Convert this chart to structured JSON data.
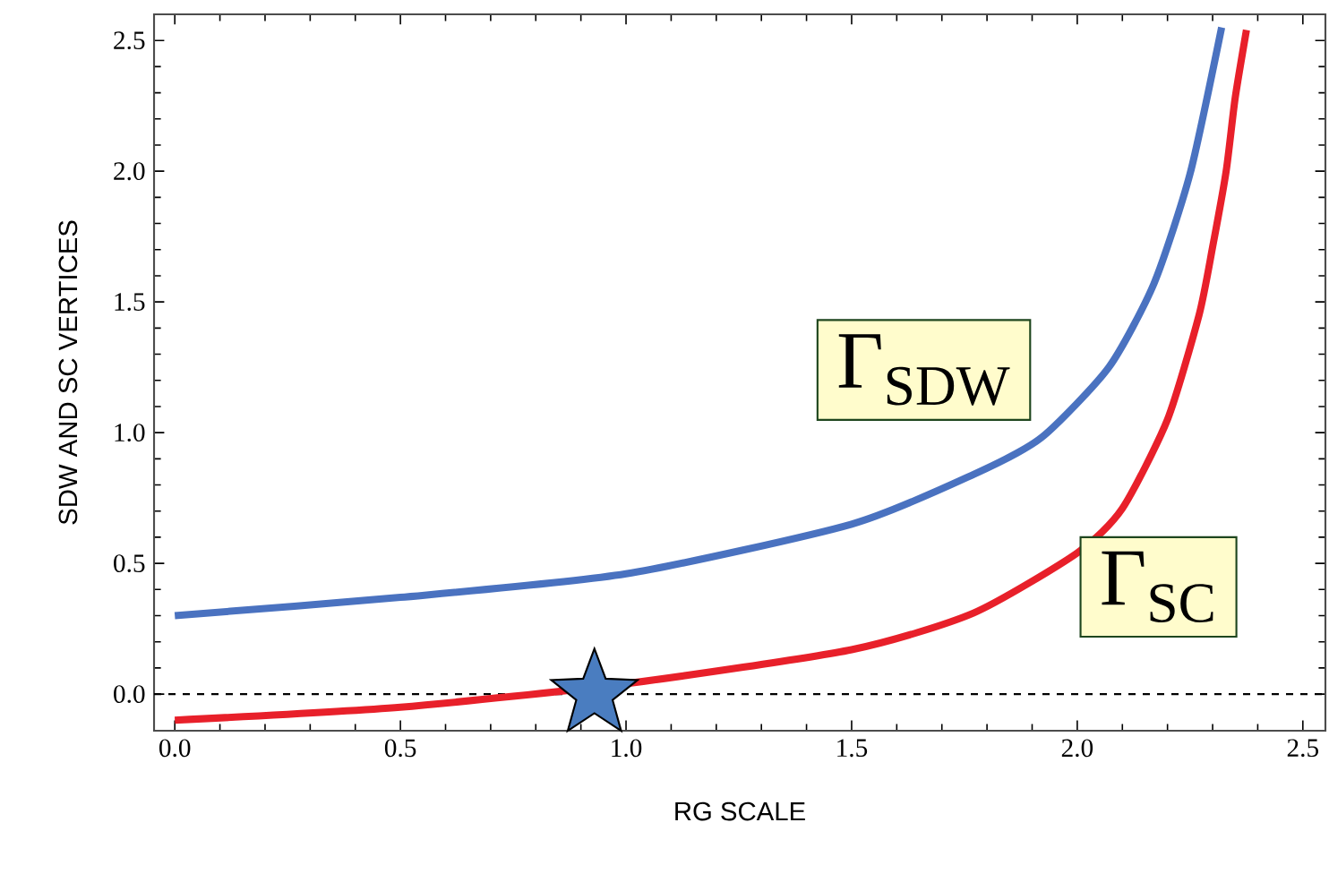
{
  "chart_data": {
    "type": "line",
    "xlabel": "RG SCALE",
    "ylabel": "SDW AND SC VERTICES",
    "xlim": [
      -0.046,
      2.55
    ],
    "ylim": [
      -0.14,
      2.6
    ],
    "xticks": [
      {
        "value": 0,
        "label": "0.0"
      },
      {
        "value": 0.5,
        "label": "0.5"
      },
      {
        "value": 1,
        "label": "1.0"
      },
      {
        "value": 1.5,
        "label": "1.5"
      },
      {
        "value": 2,
        "label": "2.0"
      },
      {
        "value": 2.5,
        "label": "2.5"
      }
    ],
    "yticks": [
      {
        "value": 0,
        "label": "0.0"
      },
      {
        "value": 0.5,
        "label": "0.5"
      },
      {
        "value": 1,
        "label": "1.0"
      },
      {
        "value": 1.5,
        "label": "1.5"
      },
      {
        "value": 2,
        "label": "2.0"
      },
      {
        "value": 2.5,
        "label": "2.5"
      }
    ],
    "grid": false,
    "line_style": "solid",
    "series": [
      {
        "name": "Γ$_{SDW}$",
        "color": "#4a72c0",
        "x": [
          0,
          0.5,
          1.0,
          1.5,
          1.77,
          1.92,
          2.07,
          2.17,
          2.25,
          2.32
        ],
        "values": [
          0.3,
          0.37,
          0.46,
          0.65,
          0.84,
          0.98,
          1.25,
          1.57,
          1.99,
          2.55
        ]
      },
      {
        "name": "Γ$_{SC}$",
        "color": "#e8202a",
        "x": [
          0,
          0.5,
          1.0,
          1.5,
          1.77,
          2.0,
          2.1,
          2.2,
          2.27,
          2.3,
          2.33,
          2.35,
          2.375
        ],
        "values": [
          -0.1,
          -0.05,
          0.04,
          0.17,
          0.31,
          0.54,
          0.71,
          1.05,
          1.45,
          1.71,
          2.0,
          2.28,
          2.54
        ]
      },
      {
        "type": "scatter",
        "marker": "star",
        "color": "#4a7dc0",
        "x": [
          0.93
        ],
        "values": [
          0.0
        ]
      }
    ],
    "ref_lines": [
      {
        "axis": "y",
        "value": 0,
        "line_style": "dashed",
        "color": "#000000"
      }
    ]
  }
}
